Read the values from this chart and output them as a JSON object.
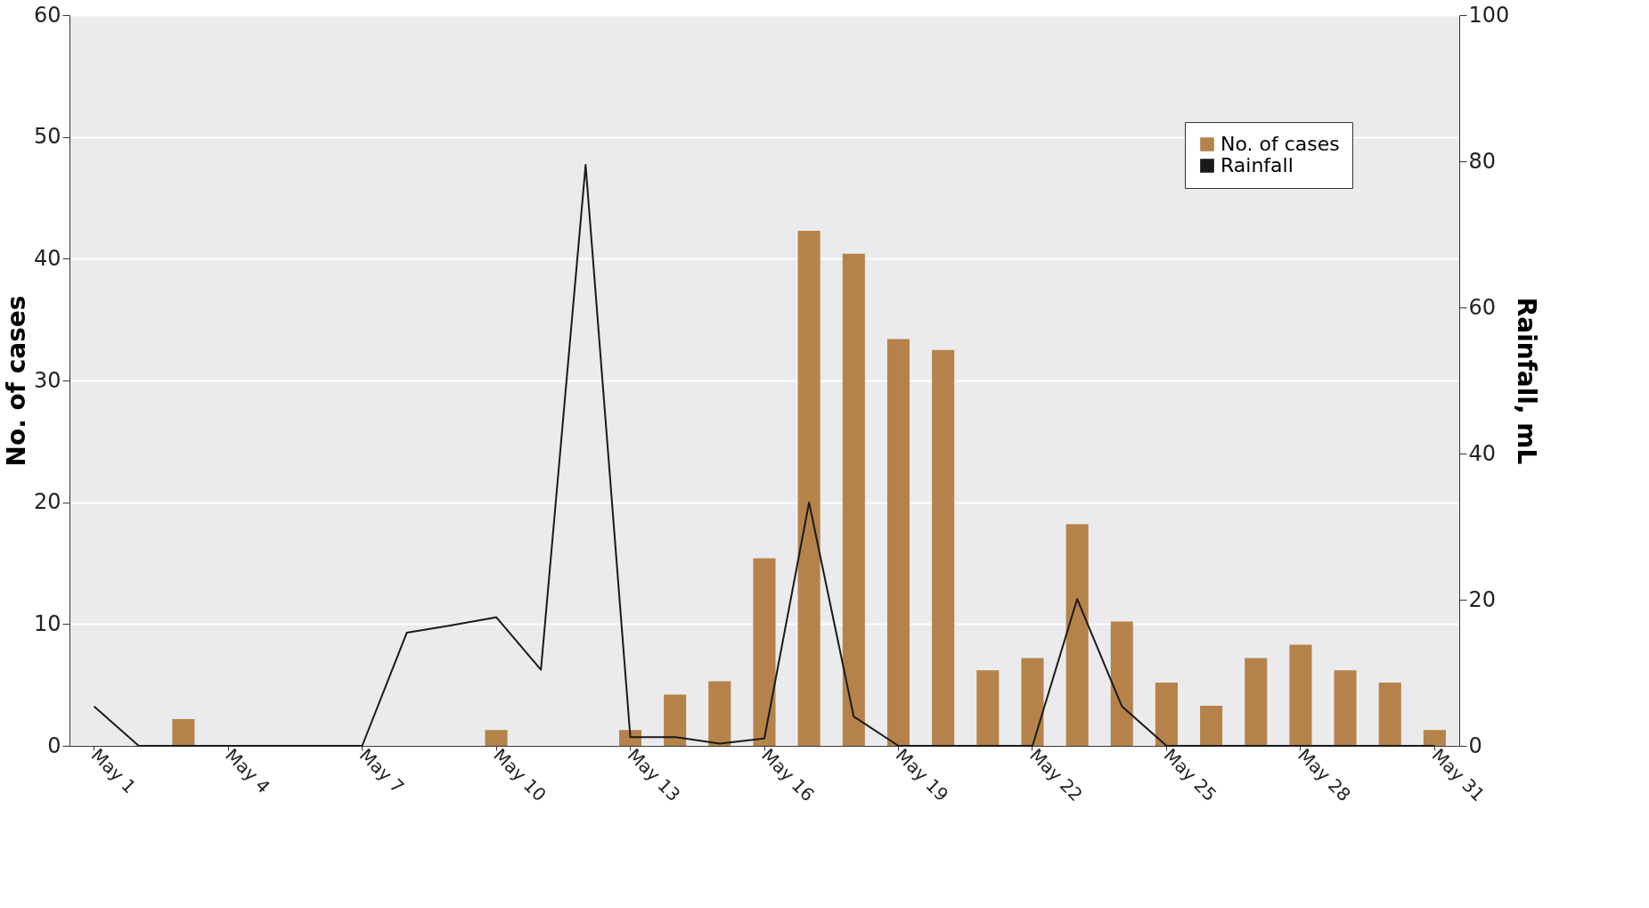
{
  "chart_data": {
    "type": "bar",
    "xlabel": null,
    "ylabel": "No. of cases",
    "y2label": "Rainfall, mL",
    "categories": [
      "May 1",
      null,
      null,
      "May 4",
      null,
      null,
      "May 7",
      null,
      null,
      "May 10",
      null,
      null,
      "May 13",
      null,
      null,
      "May 16",
      null,
      null,
      "May 19",
      null,
      null,
      "May 22",
      null,
      null,
      "May 25",
      null,
      null,
      "May 28",
      null,
      null,
      "May 31"
    ],
    "series": [
      {
        "name": "No. of cases",
        "color": "#b5834a",
        "values": [
          0,
          0,
          2.2,
          0,
          0,
          0,
          0,
          0,
          0,
          1.3,
          0,
          0,
          1.3,
          4.2,
          5.3,
          15.4,
          42.3,
          40.4,
          33.4,
          32.5,
          6.2,
          7.2,
          18.2,
          10.2,
          5.2,
          3.3,
          7.2,
          8.3,
          6.2,
          5.2,
          1.3
        ]
      },
      {
        "name": "Rainfall",
        "type": "line",
        "axis": "y2",
        "color": "#1a1a1a",
        "values": [
          5.4,
          0,
          0,
          0,
          0,
          0,
          0,
          15.5,
          16.5,
          17.6,
          10.4,
          79.5,
          1.2,
          1.2,
          0.3,
          1.0,
          33.3,
          4.0,
          0,
          0,
          0,
          0,
          20.1,
          5.4,
          0,
          0,
          0,
          0,
          0,
          0,
          0
        ]
      }
    ],
    "ylim": [
      0,
      60
    ],
    "yticks": [
      0,
      10,
      20,
      30,
      40,
      50,
      60
    ],
    "y2lim": [
      0,
      100
    ],
    "y2ticks": [
      0,
      20,
      40,
      60,
      80,
      100
    ],
    "grid": "y",
    "legend": "top right",
    "marker": "none",
    "line_style": "solid"
  }
}
